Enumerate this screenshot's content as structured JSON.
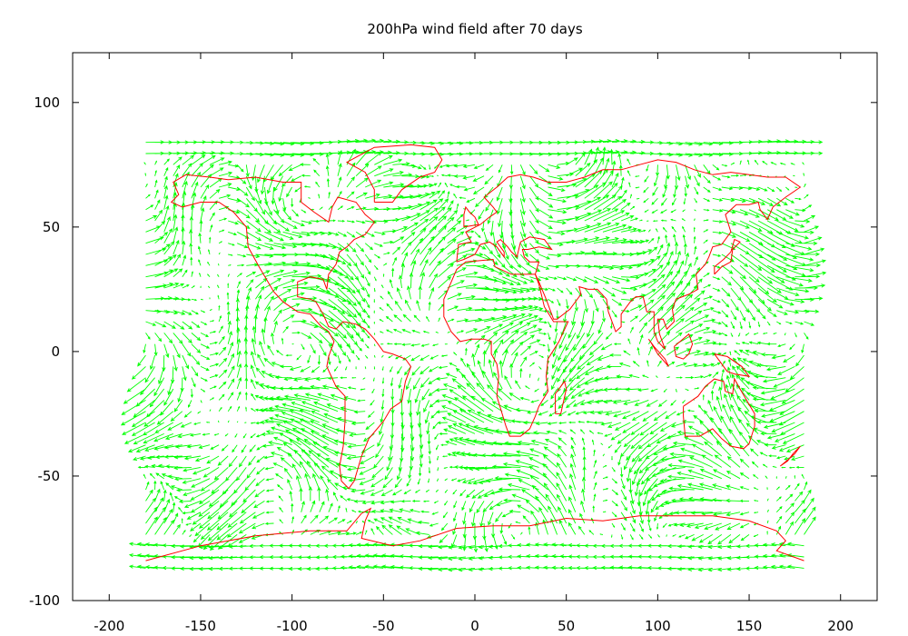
{
  "chart_data": {
    "type": "vector-field",
    "title": "200hPa wind field after 70 days",
    "xlabel": "",
    "ylabel": "",
    "xlim": [
      -220,
      220
    ],
    "ylim": [
      -100,
      120
    ],
    "x_ticks": [
      -200,
      -150,
      -100,
      -50,
      0,
      50,
      100,
      150,
      200
    ],
    "y_ticks": [
      -100,
      -50,
      0,
      50,
      100
    ],
    "grid": false,
    "legend": "none",
    "series": [
      {
        "role": "wind-vectors",
        "color": "#00ff00",
        "lon_range": [
          -180,
          180
        ],
        "lat_range": [
          -87,
          87
        ]
      },
      {
        "role": "coastlines",
        "color": "#ff0000"
      }
    ],
    "coastlines": [
      [
        [
          -160,
          58
        ],
        [
          -150,
          60
        ],
        [
          -140,
          60
        ],
        [
          -132,
          56
        ],
        [
          -125,
          50
        ],
        [
          -124,
          42
        ],
        [
          -118,
          34
        ],
        [
          -110,
          24
        ],
        [
          -105,
          20
        ],
        [
          -97,
          16
        ],
        [
          -90,
          15
        ],
        [
          -84,
          10
        ],
        [
          -80,
          8
        ],
        [
          -77,
          4
        ],
        [
          -80,
          -2
        ],
        [
          -81,
          -6
        ],
        [
          -76,
          -14
        ],
        [
          -71,
          -18
        ],
        [
          -71,
          -28
        ],
        [
          -72,
          -38
        ],
        [
          -74,
          -46
        ],
        [
          -73,
          -52
        ],
        [
          -69,
          -55
        ],
        [
          -66,
          -52
        ],
        [
          -62,
          -42
        ],
        [
          -58,
          -35
        ],
        [
          -50,
          -28
        ],
        [
          -46,
          -23
        ],
        [
          -40,
          -20
        ],
        [
          -38,
          -12
        ],
        [
          -35,
          -6
        ],
        [
          -38,
          -3
        ],
        [
          -45,
          -1
        ],
        [
          -50,
          0
        ],
        [
          -55,
          5
        ],
        [
          -60,
          9
        ],
        [
          -65,
          11
        ],
        [
          -72,
          12
        ],
        [
          -76,
          9
        ],
        [
          -80,
          10
        ],
        [
          -83,
          15
        ],
        [
          -87,
          20
        ],
        [
          -90,
          21
        ],
        [
          -97,
          22
        ],
        [
          -97,
          28
        ],
        [
          -90,
          30
        ],
        [
          -83,
          29
        ],
        [
          -81,
          25
        ],
        [
          -80,
          31
        ],
        [
          -76,
          35
        ],
        [
          -74,
          40
        ],
        [
          -70,
          42
        ],
        [
          -66,
          45
        ],
        [
          -60,
          47
        ],
        [
          -55,
          52
        ],
        [
          -60,
          55
        ],
        [
          -65,
          60
        ],
        [
          -75,
          62
        ],
        [
          -78,
          58
        ],
        [
          -80,
          52
        ],
        [
          -88,
          56
        ],
        [
          -95,
          60
        ],
        [
          -95,
          68
        ],
        [
          -105,
          68
        ],
        [
          -120,
          70
        ],
        [
          -135,
          69
        ],
        [
          -145,
          70
        ],
        [
          -158,
          71
        ],
        [
          -165,
          68
        ],
        [
          -162,
          63
        ],
        [
          -166,
          60
        ],
        [
          -160,
          58
        ]
      ],
      [
        [
          -55,
          60
        ],
        [
          -45,
          60
        ],
        [
          -40,
          65
        ],
        [
          -30,
          70
        ],
        [
          -22,
          72
        ],
        [
          -18,
          77
        ],
        [
          -22,
          82
        ],
        [
          -35,
          83
        ],
        [
          -55,
          82
        ],
        [
          -65,
          78
        ],
        [
          -70,
          76
        ],
        [
          -60,
          72
        ],
        [
          -55,
          65
        ],
        [
          -55,
          60
        ]
      ],
      [
        [
          -10,
          36
        ],
        [
          -9,
          43
        ],
        [
          -2,
          44
        ],
        [
          -5,
          48
        ],
        [
          3,
          51
        ],
        [
          8,
          54
        ],
        [
          12,
          56
        ],
        [
          10,
          58
        ],
        [
          5,
          62
        ],
        [
          12,
          66
        ],
        [
          18,
          70
        ],
        [
          25,
          71
        ],
        [
          32,
          70
        ],
        [
          40,
          68
        ],
        [
          50,
          68
        ],
        [
          60,
          70
        ],
        [
          70,
          73
        ],
        [
          80,
          73
        ],
        [
          90,
          75
        ],
        [
          100,
          77
        ],
        [
          110,
          76
        ],
        [
          120,
          73
        ],
        [
          130,
          71
        ],
        [
          140,
          72
        ],
        [
          150,
          71
        ],
        [
          160,
          70
        ],
        [
          170,
          70
        ],
        [
          178,
          66
        ],
        [
          170,
          62
        ],
        [
          163,
          58
        ],
        [
          160,
          53
        ],
        [
          156,
          57
        ],
        [
          155,
          60
        ],
        [
          150,
          59
        ],
        [
          143,
          59
        ],
        [
          137,
          55
        ],
        [
          140,
          48
        ],
        [
          135,
          43
        ],
        [
          130,
          42
        ],
        [
          128,
          38
        ],
        [
          126,
          35
        ],
        [
          121,
          31
        ],
        [
          122,
          25
        ],
        [
          117,
          23
        ],
        [
          110,
          21
        ],
        [
          108,
          17
        ],
        [
          109,
          12
        ],
        [
          105,
          9
        ],
        [
          103,
          13
        ],
        [
          100,
          13
        ],
        [
          101,
          7
        ],
        [
          104,
          1
        ],
        [
          100,
          4
        ],
        [
          98,
          8
        ],
        [
          98,
          16
        ],
        [
          94,
          16
        ],
        [
          92,
          22
        ],
        [
          88,
          22
        ],
        [
          85,
          20
        ],
        [
          80,
          15
        ],
        [
          80,
          10
        ],
        [
          77,
          8
        ],
        [
          73,
          16
        ],
        [
          72,
          21
        ],
        [
          67,
          25
        ],
        [
          62,
          25
        ],
        [
          57,
          26
        ],
        [
          58,
          23
        ],
        [
          52,
          17
        ],
        [
          45,
          13
        ],
        [
          43,
          13
        ],
        [
          39,
          21
        ],
        [
          35,
          28
        ],
        [
          33,
          31
        ],
        [
          35,
          36
        ],
        [
          30,
          36
        ],
        [
          27,
          38
        ],
        [
          26,
          41
        ],
        [
          29,
          41
        ],
        [
          35,
          42
        ],
        [
          42,
          41
        ],
        [
          38,
          45
        ],
        [
          30,
          46
        ],
        [
          25,
          44
        ],
        [
          23,
          38
        ],
        [
          20,
          40
        ],
        [
          18,
          42
        ],
        [
          14,
          45
        ],
        [
          12,
          44
        ],
        [
          16,
          40
        ],
        [
          16,
          38
        ],
        [
          12,
          42
        ],
        [
          8,
          44
        ],
        [
          3,
          43
        ],
        [
          0,
          39
        ],
        [
          -6,
          37
        ],
        [
          -10,
          36
        ]
      ],
      [
        [
          -17,
          21
        ],
        [
          -10,
          33
        ],
        [
          -5,
          36
        ],
        [
          10,
          37
        ],
        [
          11,
          34
        ],
        [
          20,
          31
        ],
        [
          30,
          31
        ],
        [
          33,
          31
        ],
        [
          35,
          27
        ],
        [
          38,
          18
        ],
        [
          43,
          12
        ],
        [
          51,
          12
        ],
        [
          46,
          4
        ],
        [
          40,
          -3
        ],
        [
          39,
          -10
        ],
        [
          40,
          -16
        ],
        [
          35,
          -22
        ],
        [
          33,
          -26
        ],
        [
          30,
          -31
        ],
        [
          25,
          -34
        ],
        [
          19,
          -34
        ],
        [
          17,
          -30
        ],
        [
          12,
          -18
        ],
        [
          13,
          -10
        ],
        [
          12,
          -5
        ],
        [
          9,
          -1
        ],
        [
          9,
          4
        ],
        [
          5,
          5
        ],
        [
          -2,
          5
        ],
        [
          -8,
          4
        ],
        [
          -13,
          8
        ],
        [
          -17,
          14
        ],
        [
          -17,
          21
        ]
      ],
      [
        [
          44,
          -25
        ],
        [
          47,
          -25
        ],
        [
          50,
          -15
        ],
        [
          49,
          -12
        ],
        [
          44,
          -17
        ],
        [
          44,
          -25
        ]
      ],
      [
        [
          114,
          -22
        ],
        [
          114,
          -26
        ],
        [
          115,
          -34
        ],
        [
          123,
          -34
        ],
        [
          130,
          -31
        ],
        [
          135,
          -35
        ],
        [
          140,
          -38
        ],
        [
          147,
          -39
        ],
        [
          150,
          -37
        ],
        [
          153,
          -30
        ],
        [
          153,
          -25
        ],
        [
          149,
          -20
        ],
        [
          145,
          -15
        ],
        [
          142,
          -11
        ],
        [
          141,
          -17
        ],
        [
          137,
          -16
        ],
        [
          136,
          -12
        ],
        [
          131,
          -11
        ],
        [
          126,
          -14
        ],
        [
          122,
          -18
        ],
        [
          114,
          -22
        ]
      ],
      [
        [
          167,
          -46
        ],
        [
          171,
          -44
        ],
        [
          174,
          -41
        ],
        [
          178,
          -38
        ],
        [
          175,
          -41
        ],
        [
          172,
          -43
        ],
        [
          167,
          -46
        ]
      ],
      [
        [
          95,
          5
        ],
        [
          98,
          2
        ],
        [
          104,
          -3
        ],
        [
          106,
          -6
        ],
        [
          100,
          -1
        ],
        [
          96,
          4
        ],
        [
          95,
          5
        ]
      ],
      [
        [
          109,
          2
        ],
        [
          117,
          7
        ],
        [
          119,
          3
        ],
        [
          117,
          -1
        ],
        [
          114,
          -3
        ],
        [
          110,
          -2
        ],
        [
          109,
          2
        ]
      ],
      [
        [
          131,
          -1
        ],
        [
          138,
          -2
        ],
        [
          146,
          -6
        ],
        [
          150,
          -10
        ],
        [
          142,
          -9
        ],
        [
          138,
          -8
        ],
        [
          131,
          -1
        ]
      ],
      [
        [
          131,
          31
        ],
        [
          135,
          34
        ],
        [
          140,
          36
        ],
        [
          141,
          41
        ],
        [
          145,
          44
        ],
        [
          142,
          45
        ],
        [
          140,
          40
        ],
        [
          136,
          37
        ],
        [
          131,
          34
        ],
        [
          131,
          31
        ]
      ],
      [
        [
          -6,
          50
        ],
        [
          2,
          51
        ],
        [
          0,
          54
        ],
        [
          -3,
          56
        ],
        [
          -5,
          58
        ],
        [
          -6,
          55
        ],
        [
          -6,
          50
        ]
      ],
      [
        [
          -180,
          -84
        ],
        [
          -150,
          -78
        ],
        [
          -120,
          -74
        ],
        [
          -90,
          -72
        ],
        [
          -70,
          -72
        ],
        [
          -62,
          -65
        ],
        [
          -57,
          -63
        ],
        [
          -60,
          -68
        ],
        [
          -62,
          -75
        ],
        [
          -45,
          -78
        ],
        [
          -30,
          -76
        ],
        [
          -10,
          -71
        ],
        [
          10,
          -70
        ],
        [
          30,
          -70
        ],
        [
          50,
          -67
        ],
        [
          70,
          -68
        ],
        [
          90,
          -66
        ],
        [
          110,
          -66
        ],
        [
          130,
          -66
        ],
        [
          150,
          -68
        ],
        [
          165,
          -72
        ],
        [
          170,
          -76
        ],
        [
          165,
          -80
        ],
        [
          180,
          -84
        ]
      ]
    ]
  }
}
